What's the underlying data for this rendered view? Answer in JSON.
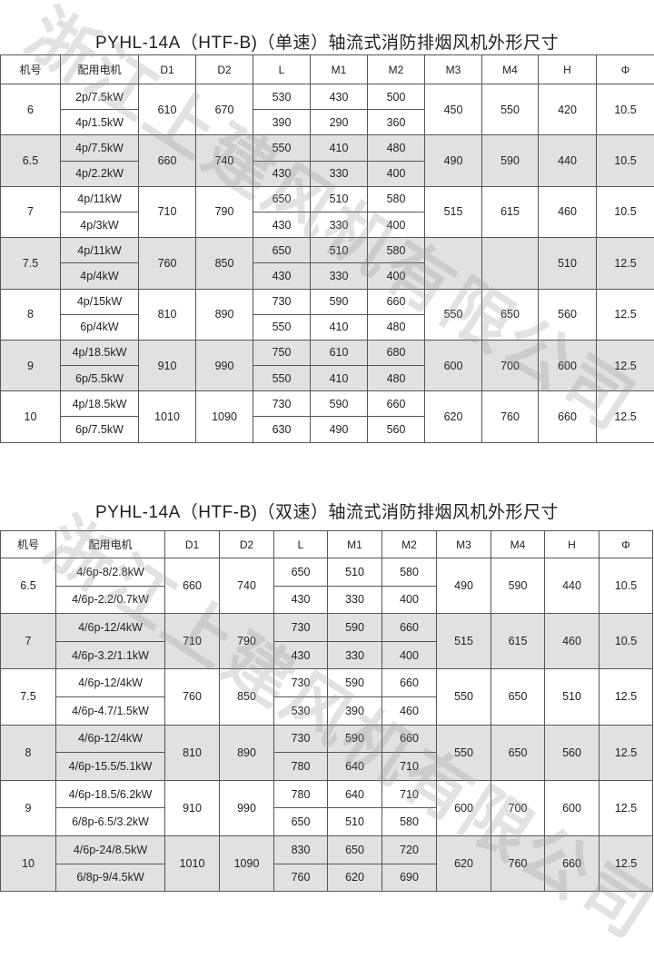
{
  "watermark": "浙江上建风机有限公司",
  "columns": [
    "机号",
    "配用电机",
    "D1",
    "D2",
    "L",
    "M1",
    "M2",
    "M3",
    "M4",
    "H",
    "Φ"
  ],
  "table1": {
    "title": "PYHL-14A（HTF-B)（单速）轴流式消防排烟风机外形尺寸",
    "groups": [
      {
        "no": "6",
        "motors": [
          "2p/7.5kW",
          "4p/1.5kW"
        ],
        "D1": "610",
        "D2": "670",
        "L": [
          "530",
          "390"
        ],
        "M1": [
          "430",
          "290"
        ],
        "M2": [
          "500",
          "360"
        ],
        "M3": "450",
        "M4": "550",
        "H": "420",
        "phi": "10.5"
      },
      {
        "no": "6.5",
        "motors": [
          "4p/7.5kW",
          "4p/2.2kW"
        ],
        "D1": "660",
        "D2": "740",
        "L": [
          "550",
          "430"
        ],
        "M1": [
          "410",
          "330"
        ],
        "M2": [
          "480",
          "400"
        ],
        "M3": "490",
        "M4": "590",
        "H": "440",
        "phi": "10.5"
      },
      {
        "no": "7",
        "motors": [
          "4p/11kW",
          "4p/3kW"
        ],
        "D1": "710",
        "D2": "790",
        "L": [
          "650",
          "430"
        ],
        "M1": [
          "510",
          "330"
        ],
        "M2": [
          "580",
          "400"
        ],
        "M3": "515",
        "M4": "615",
        "H": "460",
        "phi": "10.5"
      },
      {
        "no": "7.5",
        "motors": [
          "4p/11kW",
          "4p/4kW"
        ],
        "D1": "760",
        "D2": "850",
        "L": [
          "650",
          "430"
        ],
        "M1": [
          "510",
          "330"
        ],
        "M2": [
          "580",
          "400"
        ],
        "M3": "",
        "M4": "",
        "H": "510",
        "phi": "12.5"
      },
      {
        "no": "8",
        "motors": [
          "4p/15kW",
          "6p/4kW"
        ],
        "D1": "810",
        "D2": "890",
        "L": [
          "730",
          "550"
        ],
        "M1": [
          "590",
          "410"
        ],
        "M2": [
          "660",
          "480"
        ],
        "M3": "550",
        "M4": "650",
        "H": "560",
        "phi": "12.5"
      },
      {
        "no": "9",
        "motors": [
          "4p/18.5kW",
          "6p/5.5kW"
        ],
        "D1": "910",
        "D2": "990",
        "L": [
          "750",
          "550"
        ],
        "M1": [
          "610",
          "410"
        ],
        "M2": [
          "680",
          "480"
        ],
        "M3": "600",
        "M4": "700",
        "H": "600",
        "phi": "12.5"
      },
      {
        "no": "10",
        "motors": [
          "4p/18.5kW",
          "6p/7.5kW"
        ],
        "D1": "1010",
        "D2": "1090",
        "L": [
          "730",
          "630"
        ],
        "M1": [
          "590",
          "490"
        ],
        "M2": [
          "660",
          "560"
        ],
        "M3": "620",
        "M4": "760",
        "H": "660",
        "phi": "12.5"
      }
    ]
  },
  "table2": {
    "title": "PYHL-14A（HTF-B)（双速）轴流式消防排烟风机外形尺寸",
    "groups": [
      {
        "no": "6.5",
        "motors": [
          "4/6p-8/2.8kW",
          "4/6p-2.2/0.7kW"
        ],
        "D1": "660",
        "D2": "740",
        "L": [
          "650",
          "430"
        ],
        "M1": [
          "510",
          "330"
        ],
        "M2": [
          "580",
          "400"
        ],
        "M3": "490",
        "M4": "590",
        "H": "440",
        "phi": "10.5"
      },
      {
        "no": "7",
        "motors": [
          "4/6p-12/4kW",
          "4/6p-3.2/1.1kW"
        ],
        "D1": "710",
        "D2": "790",
        "L": [
          "730",
          "430"
        ],
        "M1": [
          "590",
          "330"
        ],
        "M2": [
          "660",
          "400"
        ],
        "M3": "515",
        "M4": "615",
        "H": "460",
        "phi": "10.5"
      },
      {
        "no": "7.5",
        "motors": [
          "4/6p-12/4kW",
          "4/6p-4.7/1.5kW"
        ],
        "D1": "760",
        "D2": "850",
        "L": [
          "730",
          "530"
        ],
        "M1": [
          "590",
          "390"
        ],
        "M2": [
          "660",
          "460"
        ],
        "M3": "550",
        "M4": "650",
        "H": "510",
        "phi": "12.5"
      },
      {
        "no": "8",
        "motors": [
          "4/6p-12/4kW",
          "4/6p-15.5/5.1kW"
        ],
        "D1": "810",
        "D2": "890",
        "L": [
          "730",
          "780"
        ],
        "M1": [
          "590",
          "640"
        ],
        "M2": [
          "660",
          "710"
        ],
        "M3": "550",
        "M4": "650",
        "H": "560",
        "phi": "12.5"
      },
      {
        "no": "9",
        "motors": [
          "4/6p-18.5/6.2kW",
          "6/8p-6.5/3.2kW"
        ],
        "D1": "910",
        "D2": "990",
        "L": [
          "780",
          "650"
        ],
        "M1": [
          "640",
          "510"
        ],
        "M2": [
          "710",
          "580"
        ],
        "M3": "600",
        "M4": "700",
        "H": "600",
        "phi": "12.5"
      },
      {
        "no": "10",
        "motors": [
          "4/6p-24/8.5kW",
          "6/8p-9/4.5kW"
        ],
        "D1": "1010",
        "D2": "1090",
        "L": [
          "830",
          "760"
        ],
        "M1": [
          "650",
          "620"
        ],
        "M2": [
          "720",
          "690"
        ],
        "M3": "620",
        "M4": "760",
        "H": "660",
        "phi": "12.5"
      }
    ]
  }
}
